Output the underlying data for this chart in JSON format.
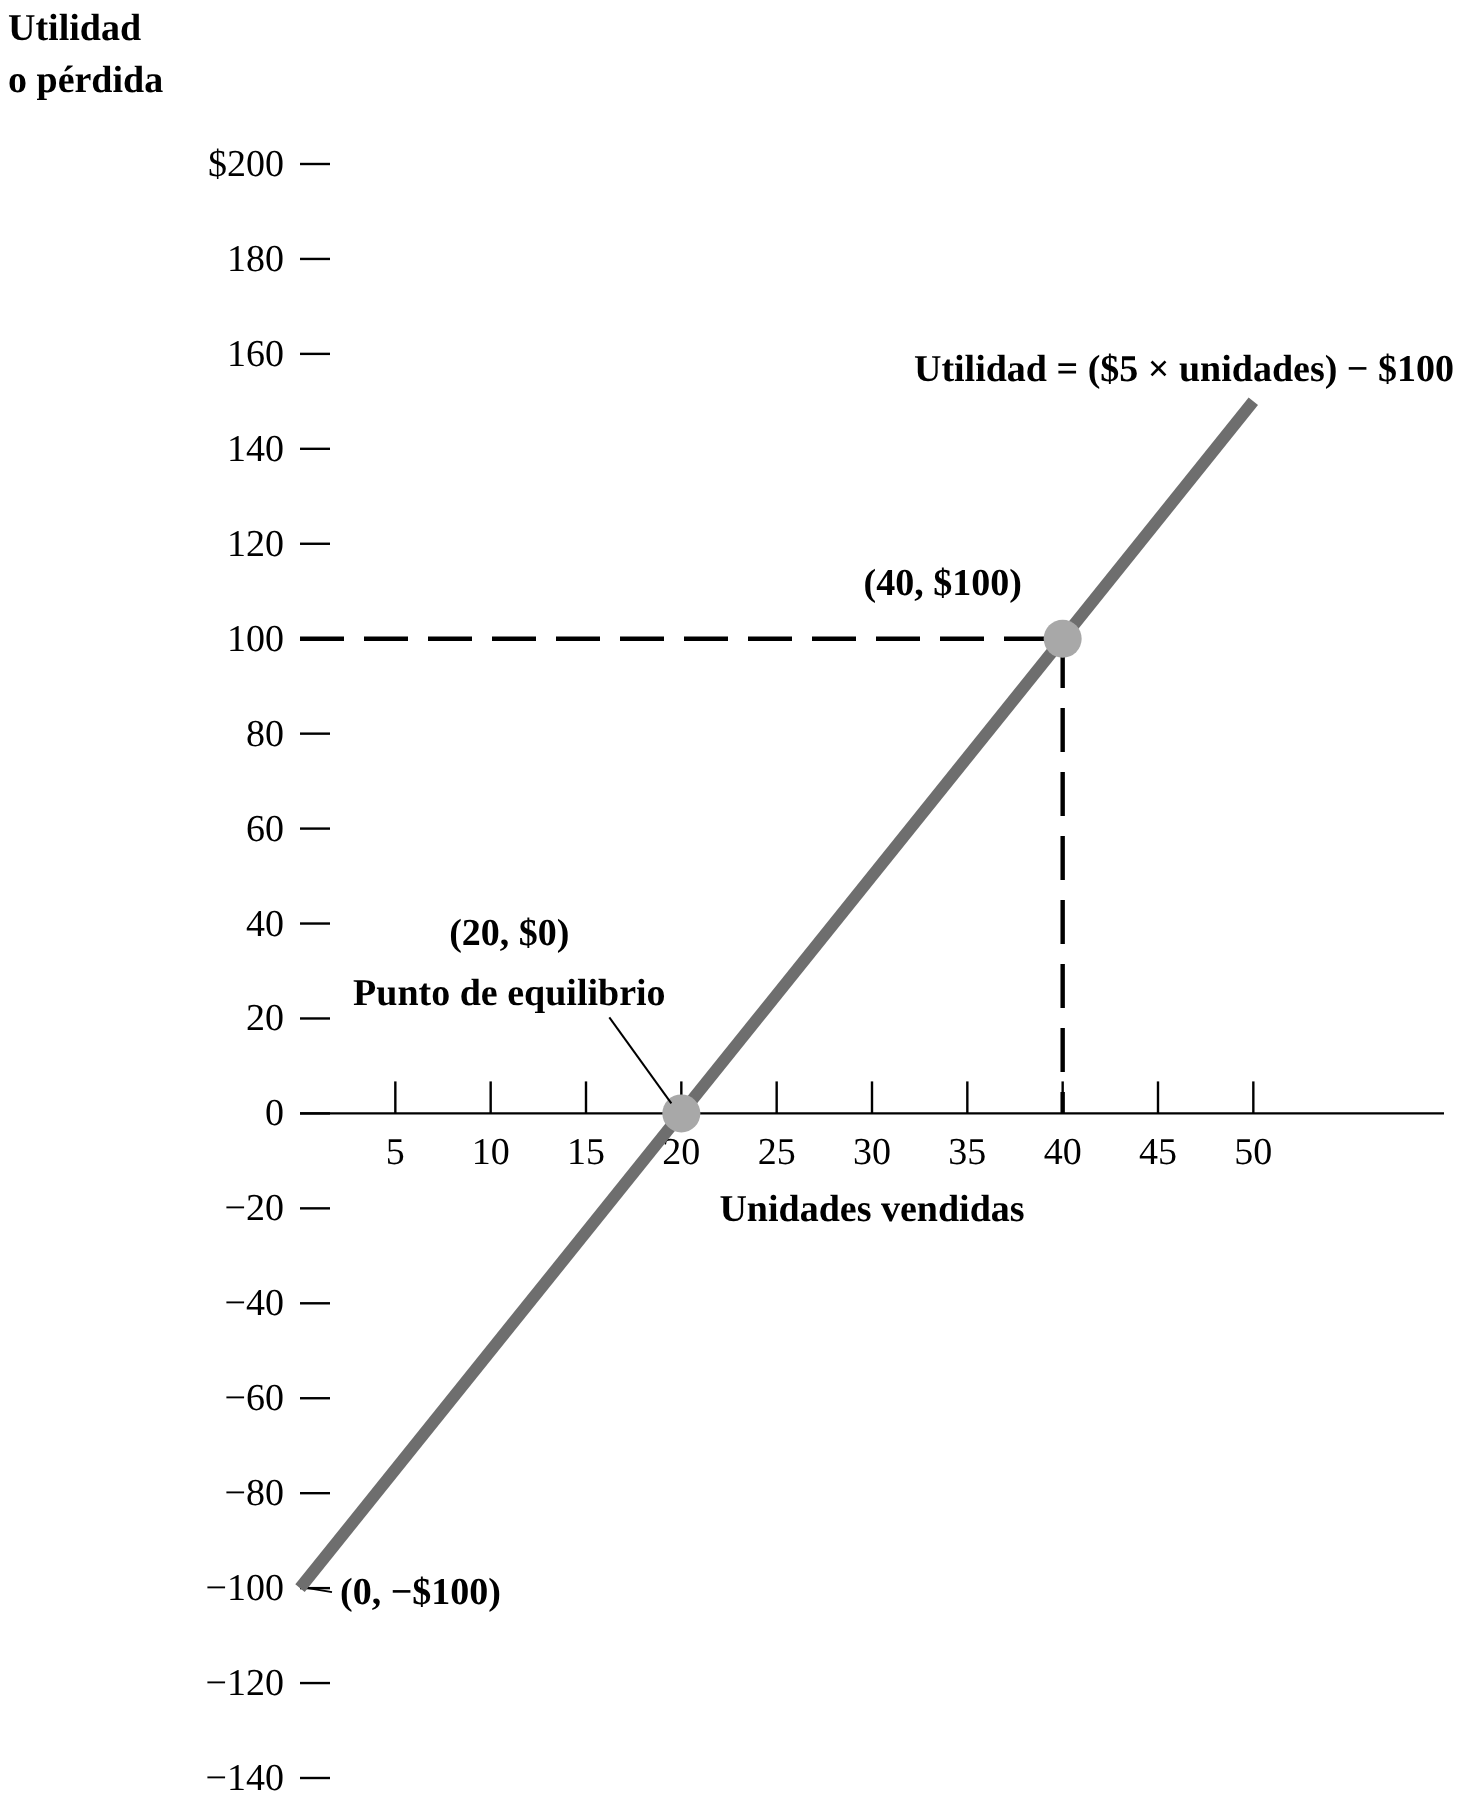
{
  "chart_data": {
    "type": "line",
    "xlabel": "Unidades vendidas",
    "ylabel": "Utilidad o pérdida",
    "xlim": [
      0,
      60
    ],
    "xticks": [
      5,
      10,
      15,
      20,
      25,
      30,
      35,
      40,
      45,
      50
    ],
    "ylim": [
      -140,
      200
    ],
    "yticks": [
      {
        "value": 200,
        "label": "$200"
      },
      180,
      160,
      140,
      120,
      100,
      80,
      60,
      40,
      20,
      0,
      {
        "value": -20,
        "label": "−20"
      },
      {
        "value": -40,
        "label": "−40"
      },
      {
        "value": -60,
        "label": "−60"
      },
      {
        "value": -80,
        "label": "−80"
      },
      {
        "value": -100,
        "label": "−100"
      },
      {
        "value": -120,
        "label": "−120"
      },
      {
        "value": -140,
        "label": "−140"
      }
    ],
    "grid": false,
    "legend": false,
    "series": [
      {
        "x": [
          0,
          40,
          40
        ],
        "values": [
          100,
          100,
          0
        ],
        "color": "#000000",
        "line_style": "dashed",
        "marker": "none"
      },
      {
        "name": "Utilidad = ($5 × unidades) − $100",
        "x": [
          0,
          50
        ],
        "values": [
          -100,
          150
        ],
        "color": "#6e6e6e",
        "line_style": "solid",
        "marker": "none"
      },
      {
        "type": "scatter",
        "x": [
          20,
          40
        ],
        "values": [
          0,
          100
        ],
        "color": "#a8a8a8",
        "marker": "circle"
      }
    ],
    "annotations": [
      {
        "text": "(40, $100)",
        "x": 40,
        "y": 100
      },
      "(20, $0)",
      {
        "text": "Punto de equilibrio",
        "x": 20,
        "y": 0
      },
      {
        "text": "(0, −$100)",
        "x": 0,
        "y": -100
      }
    ]
  }
}
